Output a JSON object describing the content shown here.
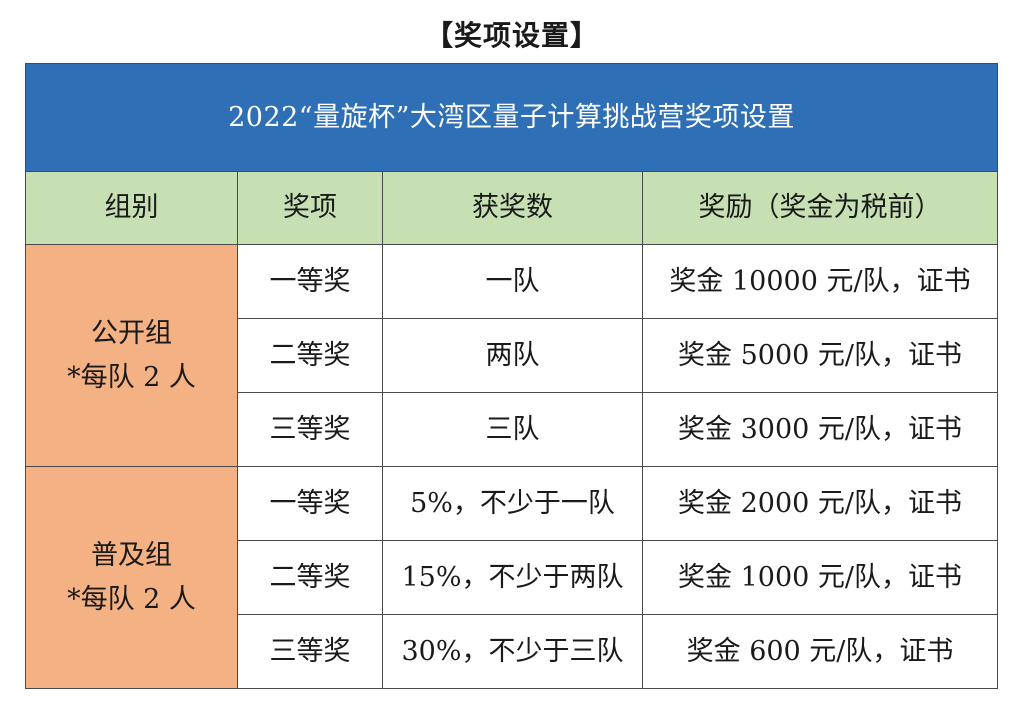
{
  "heading": "【奖项设置】",
  "table": {
    "title": "2022“量旋杯”大湾区量子计算挑战营奖项设置",
    "headers": [
      "组别",
      "奖项",
      "获奖数",
      "奖励（奖金为税前）"
    ],
    "groups": [
      {
        "name": "公开组",
        "note": "*每队 2 人",
        "rows": [
          {
            "award": "一等奖",
            "count": "一队",
            "reward": "奖金 10000 元/队，证书"
          },
          {
            "award": "二等奖",
            "count": "两队",
            "reward": "奖金 5000 元/队，证书"
          },
          {
            "award": "三等奖",
            "count": "三队",
            "reward": "奖金 3000 元/队，证书"
          }
        ]
      },
      {
        "name": "普及组",
        "note": "*每队 2 人",
        "rows": [
          {
            "award": "一等奖",
            "count": "5%，不少于一队",
            "reward": "奖金 2000 元/队，证书"
          },
          {
            "award": "二等奖",
            "count": "15%，不少于两队",
            "reward": "奖金 1000 元/队，证书"
          },
          {
            "award": "三等奖",
            "count": "30%，不少于三队",
            "reward": "奖金 600 元/队，证书"
          }
        ]
      }
    ],
    "colors": {
      "title_bg": "#2e6fb6",
      "header_bg": "#c6e0b4",
      "group_bg": "#f4b183"
    }
  }
}
